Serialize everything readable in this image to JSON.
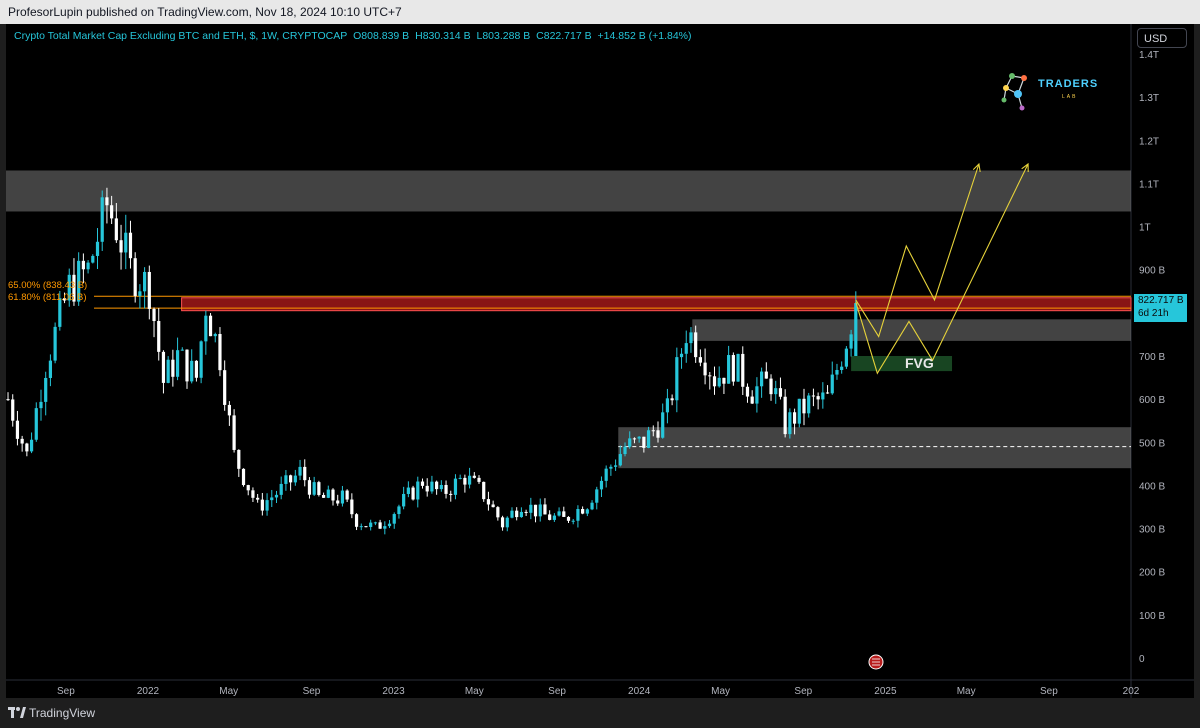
{
  "header": {
    "published_text": "ProfesorLupin published on TradingView.com, Nov 18, 2024 10:10 UTC+7"
  },
  "legend": {
    "symbol": "Crypto Total Market Cap Excluding BTC and ETH, $, 1W, CRYPTOCAP",
    "open": "O808.839 B",
    "high": "H830.314 B",
    "low": "L803.288 B",
    "close": "C822.717 B",
    "change": "+14.852 B (+1.84%)"
  },
  "currency_label": "USD",
  "logo": {
    "name": "TRADERS",
    "sub": "LAB"
  },
  "price_tag": {
    "price": "822.717 B",
    "countdown": "6d 21h"
  },
  "annotations": {
    "fvg_label": "FVG",
    "fib_upper": "65.00% (838.43 B)",
    "fib_lower": "61.80% (811.06 B)"
  },
  "footer": {
    "brand": "TradingView"
  },
  "colors": {
    "background": "#000000",
    "up_candle": "#26c6da",
    "down_candle": "#ffffff",
    "zone_gray": "#7a7a7a",
    "zone_red": "#b71c1c",
    "fvg_green": "#1b4d26",
    "projection_yellow": "#e6d23a",
    "fib_orange": "#ff9800"
  },
  "chart_data": {
    "type": "candlestick",
    "title": "Crypto Total Market Cap Excluding BTC and ETH, $, 1W, CRYPTOCAP",
    "y_unit": "USD",
    "ylim": [
      0,
      1400
    ],
    "y_ticks": [
      {
        "label": "0",
        "value": 0
      },
      {
        "label": "100 B",
        "value": 100
      },
      {
        "label": "200 B",
        "value": 200
      },
      {
        "label": "300 B",
        "value": 300
      },
      {
        "label": "400 B",
        "value": 400
      },
      {
        "label": "500 B",
        "value": 500
      },
      {
        "label": "600 B",
        "value": 600
      },
      {
        "label": "700 B",
        "value": 700
      },
      {
        "label": "800 B",
        "value": 800
      },
      {
        "label": "900 B",
        "value": 900
      },
      {
        "label": "1T",
        "value": 1000
      },
      {
        "label": "1.1T",
        "value": 1100
      },
      {
        "label": "1.2T",
        "value": 1200
      },
      {
        "label": "1.3T",
        "value": 1300
      },
      {
        "label": "1.4T",
        "value": 1400
      }
    ],
    "x_ticks": [
      {
        "label": "Sep",
        "date": "2021-09-01"
      },
      {
        "label": "2022",
        "date": "2022-01-01"
      },
      {
        "label": "May",
        "date": "2022-05-01"
      },
      {
        "label": "Sep",
        "date": "2022-09-01"
      },
      {
        "label": "2023",
        "date": "2023-01-01"
      },
      {
        "label": "May",
        "date": "2023-05-01"
      },
      {
        "label": "Sep",
        "date": "2023-09-01"
      },
      {
        "label": "2024",
        "date": "2024-01-01"
      },
      {
        "label": "May",
        "date": "2024-05-01"
      },
      {
        "label": "Sep",
        "date": "2024-09-01"
      },
      {
        "label": "2025",
        "date": "2025-01-01"
      },
      {
        "label": "May",
        "date": "2025-05-01"
      },
      {
        "label": "Sep",
        "date": "2025-09-01"
      },
      {
        "label": "202",
        "date": "2026-01-01"
      }
    ],
    "x_range": [
      "2021-06-04",
      "2026-01-01"
    ],
    "weekly_closes": [
      {
        "date": "2021-06-07",
        "close": 600
      },
      {
        "date": "2021-07-05",
        "close": 470
      },
      {
        "date": "2021-08-02",
        "close": 680
      },
      {
        "date": "2021-09-06",
        "close": 860
      },
      {
        "date": "2021-10-04",
        "close": 900
      },
      {
        "date": "2021-11-01",
        "close": 1050
      },
      {
        "date": "2021-11-15",
        "close": 1000
      },
      {
        "date": "2021-12-06",
        "close": 900
      },
      {
        "date": "2022-01-03",
        "close": 860
      },
      {
        "date": "2022-01-24",
        "close": 640
      },
      {
        "date": "2022-02-14",
        "close": 700
      },
      {
        "date": "2022-03-14",
        "close": 650
      },
      {
        "date": "2022-03-28",
        "close": 820
      },
      {
        "date": "2022-04-18",
        "close": 700
      },
      {
        "date": "2022-05-09",
        "close": 470
      },
      {
        "date": "2022-06-13",
        "close": 350
      },
      {
        "date": "2022-07-18",
        "close": 390
      },
      {
        "date": "2022-08-15",
        "close": 430
      },
      {
        "date": "2022-09-12",
        "close": 370
      },
      {
        "date": "2022-10-17",
        "close": 370
      },
      {
        "date": "2022-11-07",
        "close": 320
      },
      {
        "date": "2022-12-05",
        "close": 300
      },
      {
        "date": "2023-01-02",
        "close": 340
      },
      {
        "date": "2023-02-13",
        "close": 410
      },
      {
        "date": "2023-03-13",
        "close": 380
      },
      {
        "date": "2023-04-17",
        "close": 420
      },
      {
        "date": "2023-05-15",
        "close": 380
      },
      {
        "date": "2023-06-12",
        "close": 310
      },
      {
        "date": "2023-07-10",
        "close": 360
      },
      {
        "date": "2023-08-14",
        "close": 330
      },
      {
        "date": "2023-09-11",
        "close": 320
      },
      {
        "date": "2023-10-16",
        "close": 360
      },
      {
        "date": "2023-11-13",
        "close": 430
      },
      {
        "date": "2023-12-11",
        "close": 490
      },
      {
        "date": "2024-01-08",
        "close": 500
      },
      {
        "date": "2024-02-12",
        "close": 570
      },
      {
        "date": "2024-03-11",
        "close": 760
      },
      {
        "date": "2024-04-01",
        "close": 720
      },
      {
        "date": "2024-04-22",
        "close": 650
      },
      {
        "date": "2024-05-20",
        "close": 680
      },
      {
        "date": "2024-06-17",
        "close": 620
      },
      {
        "date": "2024-07-15",
        "close": 640
      },
      {
        "date": "2024-08-05",
        "close": 540
      },
      {
        "date": "2024-09-09",
        "close": 590
      },
      {
        "date": "2024-10-07",
        "close": 600
      },
      {
        "date": "2024-11-04",
        "close": 740
      },
      {
        "date": "2024-11-18",
        "close": 822.717
      }
    ],
    "zones": [
      {
        "name": "resistance-top",
        "from": 1035,
        "to": 1130,
        "start": "2021-06-04"
      },
      {
        "name": "resistance-red",
        "from": 805,
        "to": 835,
        "start": "2022-02-20"
      },
      {
        "name": "resistance-mid",
        "from": 735,
        "to": 785,
        "start": "2024-03-20"
      },
      {
        "name": "support",
        "from": 440,
        "to": 535,
        "start": "2023-12-01"
      }
    ],
    "fvg_zone": {
      "from": 665,
      "to": 700,
      "start": "2024-11-11",
      "end": "2025-04-10"
    },
    "dashed_level": 490,
    "fib_levels": [
      {
        "label": "65.00% (838.43 B)",
        "value": 838.43
      },
      {
        "label": "61.80% (811.06 B)",
        "value": 811.06
      }
    ],
    "projection_paths": [
      [
        {
          "date": "2024-11-18",
          "value": 830
        },
        {
          "date": "2024-12-22",
          "value": 745
        },
        {
          "date": "2025-02-01",
          "value": 955
        },
        {
          "date": "2025-03-15",
          "value": 830
        },
        {
          "date": "2025-05-20",
          "value": 1145
        }
      ],
      [
        {
          "date": "2024-11-18",
          "value": 825
        },
        {
          "date": "2024-12-20",
          "value": 660
        },
        {
          "date": "2025-02-05",
          "value": 780
        },
        {
          "date": "2025-03-12",
          "value": 690
        },
        {
          "date": "2025-08-01",
          "value": 1145
        }
      ]
    ]
  }
}
